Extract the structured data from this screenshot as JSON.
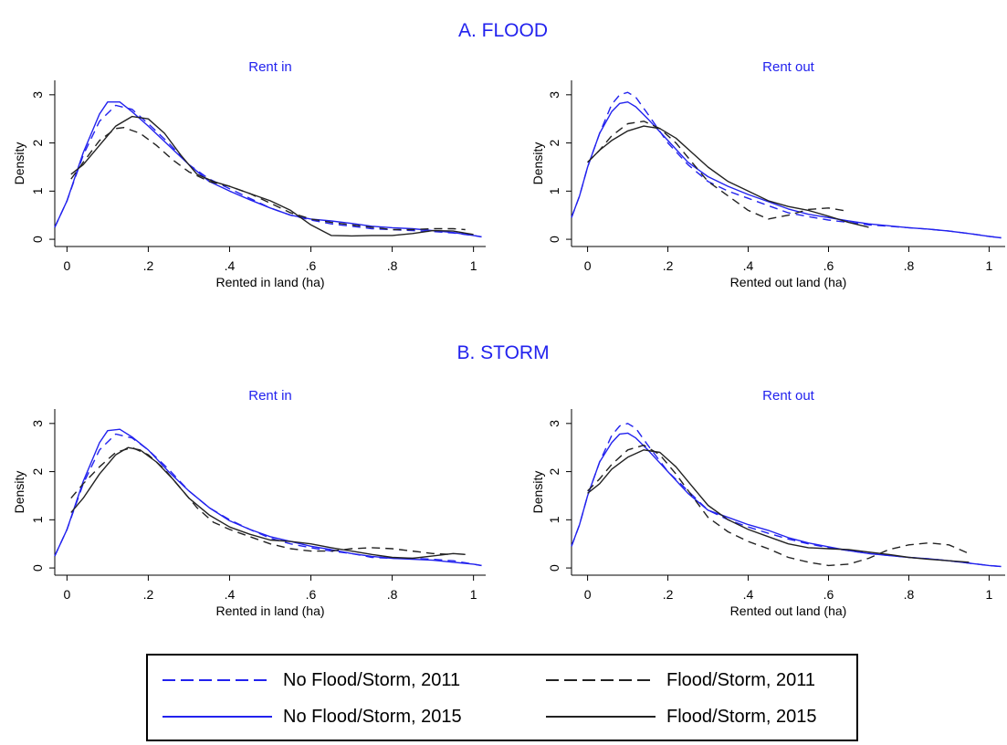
{
  "colors": {
    "no_event": "#2222ee",
    "event": "#222222",
    "title": "#2222ee"
  },
  "sections": [
    {
      "title": "A. FLOOD"
    },
    {
      "title": "B. STORM"
    }
  ],
  "legend": {
    "items": [
      {
        "label": "No Flood/Storm, 2011",
        "color": "#2222ee",
        "dash": "dashed"
      },
      {
        "label": "Flood/Storm, 2011",
        "color": "#222222",
        "dash": "dashed"
      },
      {
        "label": "No Flood/Storm, 2015",
        "color": "#2222ee",
        "dash": "solid"
      },
      {
        "label": "Flood/Storm, 2015",
        "color": "#222222",
        "dash": "solid"
      }
    ]
  },
  "chart_data": [
    {
      "type": "line",
      "section": "A. FLOOD",
      "title": "Rent in",
      "xlabel": "Rented in land (ha)",
      "ylabel": "Density",
      "xlim": [
        -0.03,
        1.03
      ],
      "ylim": [
        -0.15,
        3.3
      ],
      "xticks": [
        "0",
        ".2",
        ".4",
        ".6",
        ".8",
        "1"
      ],
      "yticks": [
        "0",
        "1",
        "2",
        "3"
      ],
      "grid": false,
      "series": [
        {
          "name": "No Flood/Storm, 2011",
          "x": [
            -0.03,
            0,
            0.04,
            0.08,
            0.12,
            0.16,
            0.2,
            0.25,
            0.3,
            0.35,
            0.4,
            0.45,
            0.5,
            0.55,
            0.6,
            0.65,
            0.7,
            0.75,
            0.8,
            0.85,
            0.9,
            0.95,
            1,
            1.02
          ],
          "y": [
            0.25,
            0.8,
            1.75,
            2.45,
            2.78,
            2.7,
            2.4,
            2.0,
            1.55,
            1.25,
            1.05,
            0.85,
            0.65,
            0.5,
            0.4,
            0.32,
            0.27,
            0.22,
            0.2,
            0.18,
            0.16,
            0.13,
            0.08,
            0.05
          ]
        },
        {
          "name": "No Flood/Storm, 2015",
          "x": [
            -0.03,
            0,
            0.04,
            0.08,
            0.1,
            0.13,
            0.16,
            0.2,
            0.25,
            0.3,
            0.35,
            0.4,
            0.45,
            0.5,
            0.55,
            0.6,
            0.65,
            0.7,
            0.75,
            0.8,
            0.85,
            0.9,
            0.95,
            1,
            1.02
          ],
          "y": [
            0.25,
            0.8,
            1.8,
            2.6,
            2.85,
            2.85,
            2.65,
            2.35,
            1.95,
            1.55,
            1.2,
            1.0,
            0.82,
            0.65,
            0.5,
            0.42,
            0.38,
            0.33,
            0.27,
            0.24,
            0.22,
            0.18,
            0.14,
            0.08,
            0.05
          ]
        },
        {
          "name": "Flood/Storm, 2011",
          "x": [
            0.01,
            0.04,
            0.08,
            0.12,
            0.14,
            0.18,
            0.22,
            0.26,
            0.3,
            0.35,
            0.4,
            0.45,
            0.5,
            0.55,
            0.6,
            0.65,
            0.7,
            0.75,
            0.8,
            0.85,
            0.9,
            0.95,
            0.98
          ],
          "y": [
            1.25,
            1.6,
            2.05,
            2.3,
            2.32,
            2.2,
            1.95,
            1.65,
            1.4,
            1.2,
            1.1,
            0.95,
            0.75,
            0.55,
            0.42,
            0.35,
            0.3,
            0.25,
            0.2,
            0.2,
            0.22,
            0.22,
            0.2
          ]
        },
        {
          "name": "Flood/Storm, 2015",
          "x": [
            0.01,
            0.04,
            0.08,
            0.12,
            0.16,
            0.2,
            0.24,
            0.28,
            0.32,
            0.36,
            0.4,
            0.45,
            0.5,
            0.55,
            0.6,
            0.65,
            0.7,
            0.75,
            0.8,
            0.85,
            0.9,
            0.95,
            1
          ],
          "y": [
            1.35,
            1.55,
            1.95,
            2.35,
            2.55,
            2.5,
            2.2,
            1.75,
            1.35,
            1.2,
            1.1,
            0.95,
            0.8,
            0.6,
            0.3,
            0.08,
            0.07,
            0.08,
            0.08,
            0.12,
            0.18,
            0.17,
            0.1
          ]
        }
      ]
    },
    {
      "type": "line",
      "section": "A. FLOOD",
      "title": "Rent out",
      "xlabel": "Rented out land (ha)",
      "ylabel": "Density",
      "xlim": [
        -0.04,
        1.04
      ],
      "ylim": [
        -0.15,
        3.3
      ],
      "xticks": [
        "0",
        ".2",
        ".4",
        ".6",
        ".8",
        "1"
      ],
      "yticks": [
        "0",
        "1",
        "2",
        "3"
      ],
      "grid": false,
      "series": [
        {
          "name": "No Flood/Storm, 2011",
          "x": [
            -0.04,
            -0.02,
            0,
            0.03,
            0.06,
            0.08,
            0.1,
            0.12,
            0.15,
            0.2,
            0.25,
            0.3,
            0.35,
            0.4,
            0.45,
            0.5,
            0.55,
            0.6,
            0.65,
            0.7,
            0.75,
            0.8,
            0.85,
            0.9,
            0.95,
            1,
            1.03
          ],
          "y": [
            0.45,
            0.9,
            1.5,
            2.2,
            2.8,
            3.0,
            3.05,
            2.95,
            2.6,
            2.0,
            1.55,
            1.2,
            1.0,
            0.85,
            0.7,
            0.55,
            0.47,
            0.4,
            0.35,
            0.3,
            0.27,
            0.24,
            0.21,
            0.17,
            0.12,
            0.06,
            0.03
          ]
        },
        {
          "name": "No Flood/Storm, 2015",
          "x": [
            -0.04,
            -0.02,
            0,
            0.03,
            0.06,
            0.08,
            0.1,
            0.12,
            0.15,
            0.2,
            0.25,
            0.3,
            0.35,
            0.4,
            0.45,
            0.5,
            0.55,
            0.6,
            0.65,
            0.7,
            0.75,
            0.8,
            0.85,
            0.9,
            0.95,
            1,
            1.03
          ],
          "y": [
            0.45,
            0.9,
            1.5,
            2.2,
            2.65,
            2.82,
            2.85,
            2.75,
            2.5,
            2.05,
            1.6,
            1.3,
            1.1,
            0.93,
            0.78,
            0.63,
            0.52,
            0.45,
            0.38,
            0.32,
            0.28,
            0.24,
            0.21,
            0.17,
            0.12,
            0.06,
            0.03
          ]
        },
        {
          "name": "Flood/Storm, 2011",
          "x": [
            0.0,
            0.03,
            0.06,
            0.1,
            0.14,
            0.18,
            0.22,
            0.26,
            0.3,
            0.35,
            0.4,
            0.45,
            0.5,
            0.55,
            0.6,
            0.65
          ],
          "y": [
            1.6,
            1.85,
            2.15,
            2.4,
            2.45,
            2.3,
            2.0,
            1.6,
            1.2,
            0.9,
            0.6,
            0.42,
            0.5,
            0.62,
            0.65,
            0.58
          ]
        },
        {
          "name": "Flood/Storm, 2015",
          "x": [
            0.0,
            0.03,
            0.06,
            0.1,
            0.14,
            0.18,
            0.22,
            0.26,
            0.3,
            0.35,
            0.4,
            0.45,
            0.5,
            0.55,
            0.6,
            0.65,
            0.7
          ],
          "y": [
            1.6,
            1.85,
            2.05,
            2.25,
            2.35,
            2.3,
            2.1,
            1.8,
            1.5,
            1.2,
            1.0,
            0.8,
            0.68,
            0.6,
            0.48,
            0.35,
            0.25
          ]
        }
      ]
    },
    {
      "type": "line",
      "section": "B. STORM",
      "title": "Rent in",
      "xlabel": "Rented in land (ha)",
      "ylabel": "Density",
      "xlim": [
        -0.03,
        1.03
      ],
      "ylim": [
        -0.15,
        3.3
      ],
      "xticks": [
        "0",
        ".2",
        ".4",
        ".6",
        ".8",
        "1"
      ],
      "yticks": [
        "0",
        "1",
        "2",
        "3"
      ],
      "grid": false,
      "series": [
        {
          "name": "No Flood/Storm, 2011",
          "x": [
            -0.03,
            0,
            0.04,
            0.08,
            0.12,
            0.16,
            0.2,
            0.25,
            0.3,
            0.35,
            0.4,
            0.45,
            0.5,
            0.55,
            0.6,
            0.65,
            0.7,
            0.75,
            0.8,
            0.85,
            0.9,
            0.95,
            1,
            1.02
          ],
          "y": [
            0.25,
            0.8,
            1.75,
            2.45,
            2.78,
            2.7,
            2.45,
            2.05,
            1.6,
            1.25,
            1.0,
            0.8,
            0.62,
            0.5,
            0.42,
            0.35,
            0.3,
            0.22,
            0.2,
            0.2,
            0.18,
            0.15,
            0.08,
            0.05
          ]
        },
        {
          "name": "No Flood/Storm, 2015",
          "x": [
            -0.03,
            0,
            0.04,
            0.08,
            0.1,
            0.13,
            0.16,
            0.2,
            0.25,
            0.3,
            0.35,
            0.4,
            0.45,
            0.5,
            0.55,
            0.6,
            0.65,
            0.7,
            0.75,
            0.8,
            0.85,
            0.9,
            0.95,
            1,
            1.02
          ],
          "y": [
            0.25,
            0.8,
            1.8,
            2.6,
            2.85,
            2.88,
            2.72,
            2.45,
            2.0,
            1.6,
            1.25,
            0.98,
            0.8,
            0.65,
            0.55,
            0.45,
            0.38,
            0.3,
            0.24,
            0.2,
            0.18,
            0.16,
            0.12,
            0.08,
            0.05
          ]
        },
        {
          "name": "Flood/Storm, 2011",
          "x": [
            0.01,
            0.04,
            0.08,
            0.12,
            0.16,
            0.2,
            0.24,
            0.28,
            0.32,
            0.36,
            0.4,
            0.45,
            0.5,
            0.55,
            0.6,
            0.65,
            0.7,
            0.75,
            0.8,
            0.85,
            0.9,
            0.95
          ],
          "y": [
            1.45,
            1.75,
            2.1,
            2.4,
            2.5,
            2.35,
            2.05,
            1.65,
            1.25,
            0.95,
            0.8,
            0.65,
            0.5,
            0.4,
            0.35,
            0.35,
            0.4,
            0.42,
            0.4,
            0.35,
            0.3,
            0.28
          ]
        },
        {
          "name": "Flood/Storm, 2015",
          "x": [
            0.01,
            0.04,
            0.08,
            0.12,
            0.15,
            0.18,
            0.22,
            0.26,
            0.3,
            0.35,
            0.4,
            0.45,
            0.5,
            0.55,
            0.6,
            0.65,
            0.7,
            0.75,
            0.8,
            0.85,
            0.9,
            0.95,
            0.98
          ],
          "y": [
            1.15,
            1.45,
            1.95,
            2.35,
            2.5,
            2.45,
            2.2,
            1.85,
            1.45,
            1.1,
            0.85,
            0.7,
            0.58,
            0.55,
            0.5,
            0.42,
            0.35,
            0.28,
            0.22,
            0.2,
            0.25,
            0.3,
            0.28
          ]
        }
      ]
    },
    {
      "type": "line",
      "section": "B. STORM",
      "title": "Rent out",
      "xlabel": "Rented out land (ha)",
      "ylabel": "Density",
      "xlim": [
        -0.04,
        1.04
      ],
      "ylim": [
        -0.15,
        3.3
      ],
      "xticks": [
        "0",
        ".2",
        ".4",
        ".6",
        ".8",
        "1"
      ],
      "yticks": [
        "0",
        "1",
        "2",
        "3"
      ],
      "grid": false,
      "series": [
        {
          "name": "No Flood/Storm, 2011",
          "x": [
            -0.04,
            -0.02,
            0,
            0.03,
            0.06,
            0.08,
            0.1,
            0.12,
            0.15,
            0.2,
            0.25,
            0.3,
            0.35,
            0.4,
            0.45,
            0.5,
            0.55,
            0.6,
            0.65,
            0.7,
            0.75,
            0.8,
            0.85,
            0.9,
            0.95,
            1,
            1.03
          ],
          "y": [
            0.45,
            0.9,
            1.5,
            2.2,
            2.75,
            2.95,
            3.0,
            2.9,
            2.55,
            2.0,
            1.6,
            1.2,
            1.0,
            0.85,
            0.72,
            0.6,
            0.5,
            0.42,
            0.36,
            0.3,
            0.26,
            0.22,
            0.19,
            0.15,
            0.1,
            0.05,
            0.03
          ]
        },
        {
          "name": "No Flood/Storm, 2015",
          "x": [
            -0.04,
            -0.02,
            0,
            0.03,
            0.06,
            0.08,
            0.1,
            0.12,
            0.15,
            0.2,
            0.25,
            0.3,
            0.35,
            0.4,
            0.45,
            0.5,
            0.55,
            0.6,
            0.65,
            0.7,
            0.75,
            0.8,
            0.85,
            0.9,
            0.95,
            1,
            1.03
          ],
          "y": [
            0.45,
            0.9,
            1.5,
            2.2,
            2.6,
            2.78,
            2.8,
            2.7,
            2.45,
            2.0,
            1.55,
            1.2,
            1.05,
            0.9,
            0.78,
            0.63,
            0.52,
            0.44,
            0.36,
            0.3,
            0.26,
            0.22,
            0.19,
            0.15,
            0.1,
            0.05,
            0.03
          ]
        },
        {
          "name": "Flood/Storm, 2011",
          "x": [
            0.0,
            0.03,
            0.06,
            0.1,
            0.14,
            0.18,
            0.22,
            0.26,
            0.3,
            0.35,
            0.4,
            0.45,
            0.5,
            0.55,
            0.6,
            0.65,
            0.7,
            0.75,
            0.8,
            0.85,
            0.9,
            0.95
          ],
          "y": [
            1.6,
            1.85,
            2.15,
            2.45,
            2.55,
            2.35,
            1.95,
            1.5,
            1.05,
            0.75,
            0.55,
            0.4,
            0.22,
            0.12,
            0.05,
            0.08,
            0.2,
            0.38,
            0.48,
            0.52,
            0.48,
            0.3
          ]
        },
        {
          "name": "Flood/Storm, 2015",
          "x": [
            0.0,
            0.03,
            0.06,
            0.1,
            0.14,
            0.18,
            0.22,
            0.26,
            0.3,
            0.35,
            0.4,
            0.45,
            0.5,
            0.55,
            0.6,
            0.65,
            0.7,
            0.75,
            0.8,
            0.85,
            0.9,
            0.95
          ],
          "y": [
            1.55,
            1.75,
            2.05,
            2.3,
            2.45,
            2.4,
            2.1,
            1.7,
            1.3,
            1.0,
            0.8,
            0.65,
            0.5,
            0.42,
            0.4,
            0.38,
            0.33,
            0.28,
            0.22,
            0.18,
            0.15,
            0.12
          ]
        }
      ]
    }
  ]
}
